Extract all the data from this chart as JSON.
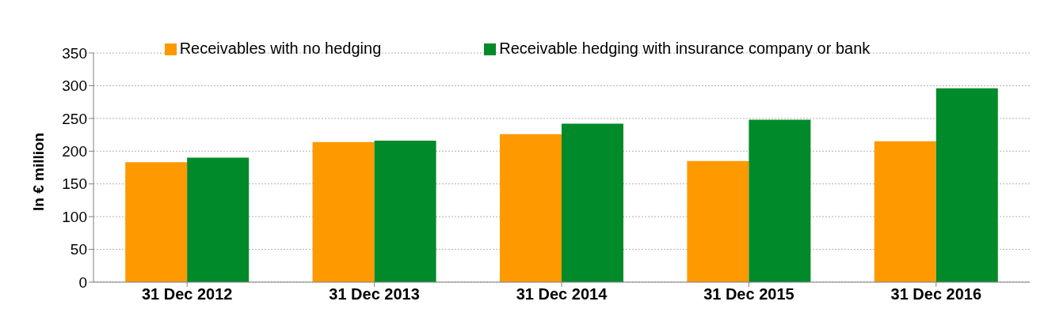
{
  "chart_data": {
    "type": "bar",
    "ylabel": "In € million",
    "categories": [
      "31 Dec 2012",
      "31 Dec 2013",
      "31 Dec 2014",
      "31 Dec 2015",
      "31 Dec 2016"
    ],
    "series": [
      {
        "name": "Receivables with no hedging",
        "color": "#ff9900",
        "values": [
          183,
          214,
          226,
          185,
          215
        ]
      },
      {
        "name": "Receivable hedging with insurance company or bank",
        "color": "#008a29",
        "values": [
          190,
          216,
          242,
          248,
          296
        ]
      }
    ],
    "ylim": [
      0,
      350
    ],
    "yticks": [
      0,
      50,
      100,
      150,
      200,
      250,
      300,
      350
    ],
    "grid": "y",
    "legend": "top"
  }
}
